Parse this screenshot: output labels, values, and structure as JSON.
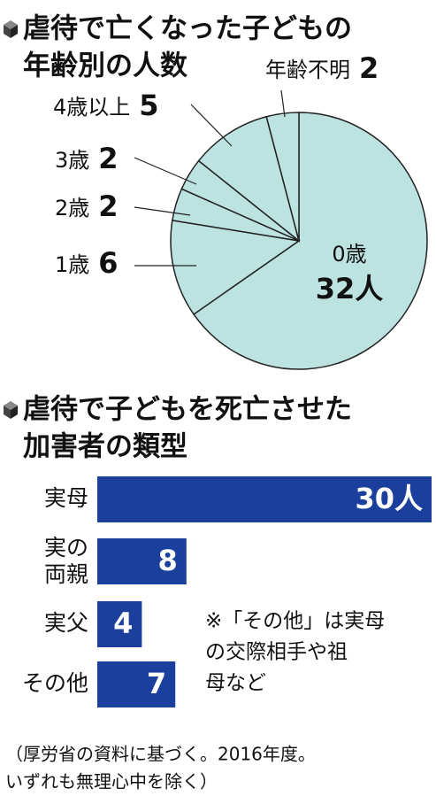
{
  "chart_data": [
    {
      "type": "pie",
      "title": [
        "虐待で亡くなった子どもの",
        "年齢別の人数"
      ],
      "categories": [
        "0歳",
        "1歳",
        "2歳",
        "3歳",
        "4歳以上",
        "年齢不明"
      ],
      "values": [
        32,
        6,
        2,
        2,
        5,
        2
      ],
      "value_labels": [
        "32人",
        "6",
        "2",
        "2",
        "5",
        "2"
      ],
      "color": "#bde3e1"
    },
    {
      "type": "bar",
      "title": [
        "虐待で子どもを死亡させた",
        "加害者の類型"
      ],
      "categories": [
        "実母",
        "実の両親",
        "実父",
        "その他"
      ],
      "values": [
        30,
        8,
        4,
        7
      ],
      "value_labels": [
        "30人",
        "8",
        "4",
        "7"
      ],
      "color": "#1b3f9c",
      "note": [
        "※「その他」は実母",
        "の交際相手や祖",
        "母など"
      ],
      "source": [
        "（厚労省の資料に基づく。2016年度。",
        "いずれも無理心中を除く）"
      ]
    }
  ]
}
